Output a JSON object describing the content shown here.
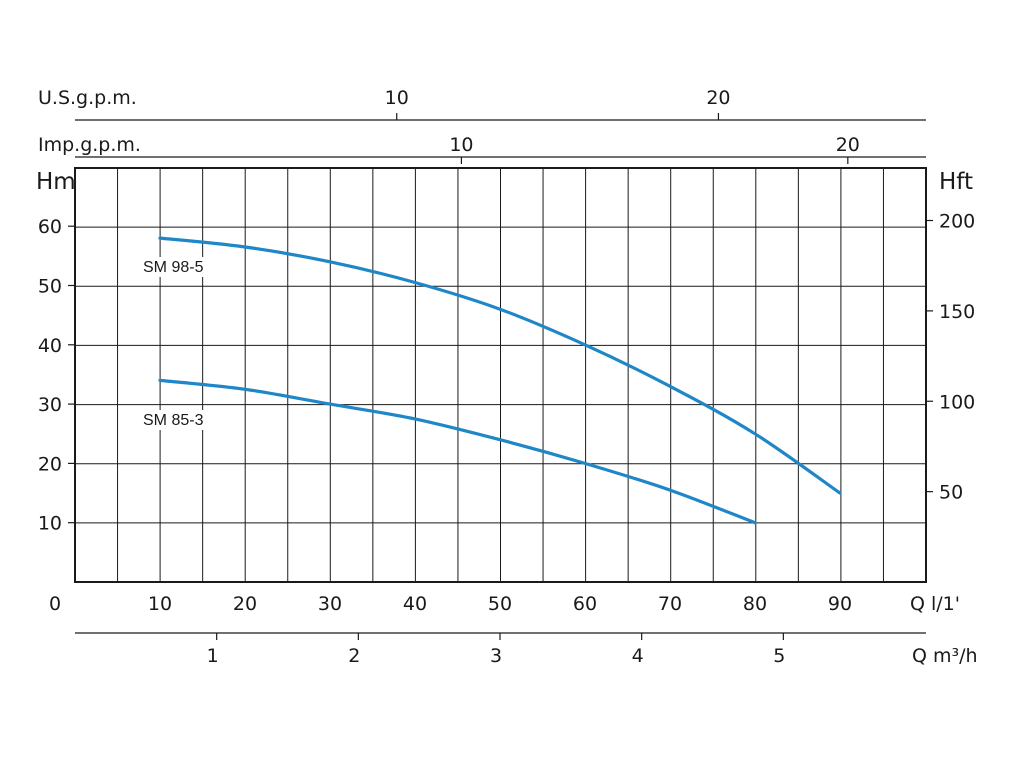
{
  "colors": {
    "curve": "#1f86c8",
    "grid": "#1a1a1a",
    "background": "#ffffff"
  },
  "chart_data": {
    "type": "line",
    "title": "",
    "xlabel": "Q l/1'",
    "ylabel": "Hm",
    "xlim": [
      0,
      100
    ],
    "ylim": [
      0,
      70
    ],
    "grid": true,
    "x_ticks": [
      0,
      10,
      20,
      30,
      40,
      50,
      60,
      70,
      80,
      90
    ],
    "y_ticks": [
      10,
      20,
      30,
      40,
      50,
      60
    ],
    "series": [
      {
        "name": "SM 98-5",
        "x": [
          10,
          20,
          30,
          40,
          50,
          60,
          70,
          80,
          90
        ],
        "y": [
          58,
          56.5,
          54,
          50.5,
          46,
          40,
          33,
          25,
          15
        ]
      },
      {
        "name": "SM 85-3",
        "x": [
          10,
          20,
          30,
          40,
          50,
          60,
          70,
          80
        ],
        "y": [
          34,
          32.5,
          30,
          27.5,
          24,
          20,
          15.5,
          10
        ]
      }
    ],
    "right_axis": {
      "label": "Hft",
      "ticks": [
        50,
        100,
        150,
        200
      ]
    },
    "top_axes": [
      {
        "label": "U.S.g.p.m.",
        "ticks": [
          10,
          20
        ]
      },
      {
        "label": "Imp.g.p.m.",
        "ticks": [
          10,
          20
        ]
      }
    ],
    "bottom_axis": {
      "label": "Q m³/h",
      "ticks": [
        1,
        2,
        3,
        4,
        5
      ]
    }
  }
}
